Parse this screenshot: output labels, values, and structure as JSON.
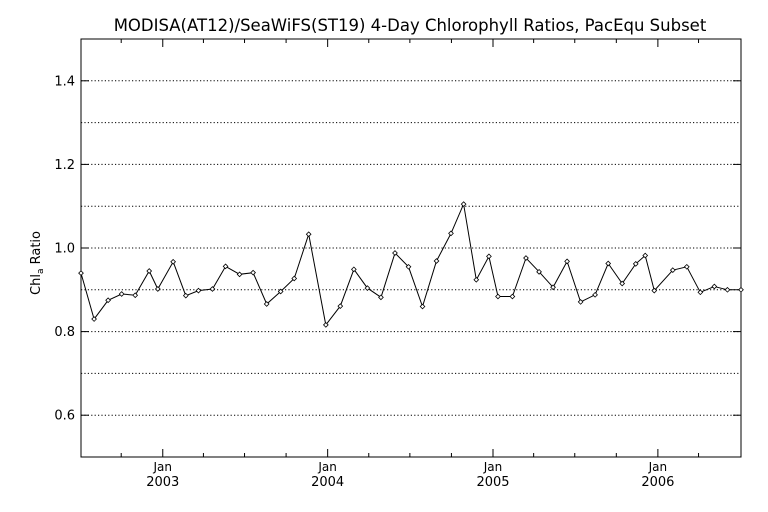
{
  "chart_data": {
    "type": "line",
    "title": "MODISA(AT12)/SeaWiFS(ST19) 4-Day Chlorophyll Ratios, PacEqu Subset",
    "ylabel": {
      "main": "Chl",
      "sub": "a",
      "rest": " Ratio"
    },
    "xlabel": "",
    "ylim": [
      0.5,
      1.5
    ],
    "xlim": [
      "2002-07-04",
      "2006-07-04"
    ],
    "yticks": [
      {
        "value": 0.6,
        "label": "0.6"
      },
      {
        "value": 0.8,
        "label": "0.8"
      },
      {
        "value": 1.0,
        "label": "1.0"
      },
      {
        "value": 1.2,
        "label": "1.2"
      },
      {
        "value": 1.4,
        "label": "1.4"
      }
    ],
    "grid_y": [
      0.6,
      0.7,
      0.8,
      0.9,
      1.0,
      1.1,
      1.2,
      1.3,
      1.4
    ],
    "xticks": [
      {
        "date": "2003-01-01",
        "month": "Jan",
        "year": "2003"
      },
      {
        "date": "2004-01-01",
        "month": "Jan",
        "year": "2004"
      },
      {
        "date": "2005-01-01",
        "month": "Jan",
        "year": "2005"
      },
      {
        "date": "2006-01-01",
        "month": "Jan",
        "year": "2006"
      }
    ],
    "minor_xticks": [
      "2002-10-01",
      "2003-04-01",
      "2003-07-01",
      "2003-10-01",
      "2004-04-01",
      "2004-07-01",
      "2004-10-01",
      "2005-04-01",
      "2005-07-01",
      "2005-10-01",
      "2006-04-01"
    ],
    "grid": true,
    "series": [
      {
        "x": [
          "2002-07-04",
          "2002-08-02",
          "2002-09-02",
          "2002-10-02",
          "2002-11-01",
          "2002-12-02",
          "2002-12-21",
          "2003-01-24",
          "2003-02-21",
          "2003-03-21",
          "2003-04-21",
          "2003-05-20",
          "2003-06-20",
          "2003-07-20",
          "2003-08-19",
          "2003-09-19",
          "2003-10-19",
          "2003-11-20",
          "2003-12-28",
          "2004-01-29",
          "2004-02-28",
          "2004-03-29",
          "2004-04-28",
          "2004-05-29",
          "2004-06-28",
          "2004-07-29",
          "2004-08-29",
          "2004-09-30",
          "2004-10-28",
          "2004-11-25",
          "2004-12-23",
          "2005-01-12",
          "2005-02-13",
          "2005-03-15",
          "2005-04-13",
          "2005-05-14",
          "2005-06-14",
          "2005-07-14",
          "2005-08-15",
          "2005-09-13",
          "2005-10-14",
          "2005-11-13",
          "2005-12-04",
          "2005-12-24",
          "2006-02-03",
          "2006-03-06",
          "2006-04-05",
          "2006-05-06",
          "2006-06-04",
          "2006-07-04"
        ],
        "values": [
          0.94,
          0.83,
          0.875,
          0.89,
          0.887,
          0.945,
          0.902,
          0.967,
          0.886,
          0.898,
          0.902,
          0.956,
          0.937,
          0.941,
          0.866,
          0.896,
          0.927,
          1.033,
          0.816,
          0.861,
          0.949,
          0.904,
          0.882,
          0.988,
          0.955,
          0.86,
          0.969,
          1.035,
          1.105,
          0.924,
          0.98,
          0.884,
          0.884,
          0.976,
          0.943,
          0.906,
          0.968,
          0.871,
          0.888,
          0.963,
          0.915,
          0.962,
          0.982,
          0.898,
          0.947,
          0.955,
          0.894,
          0.908,
          0.9,
          0.9
        ]
      }
    ]
  }
}
